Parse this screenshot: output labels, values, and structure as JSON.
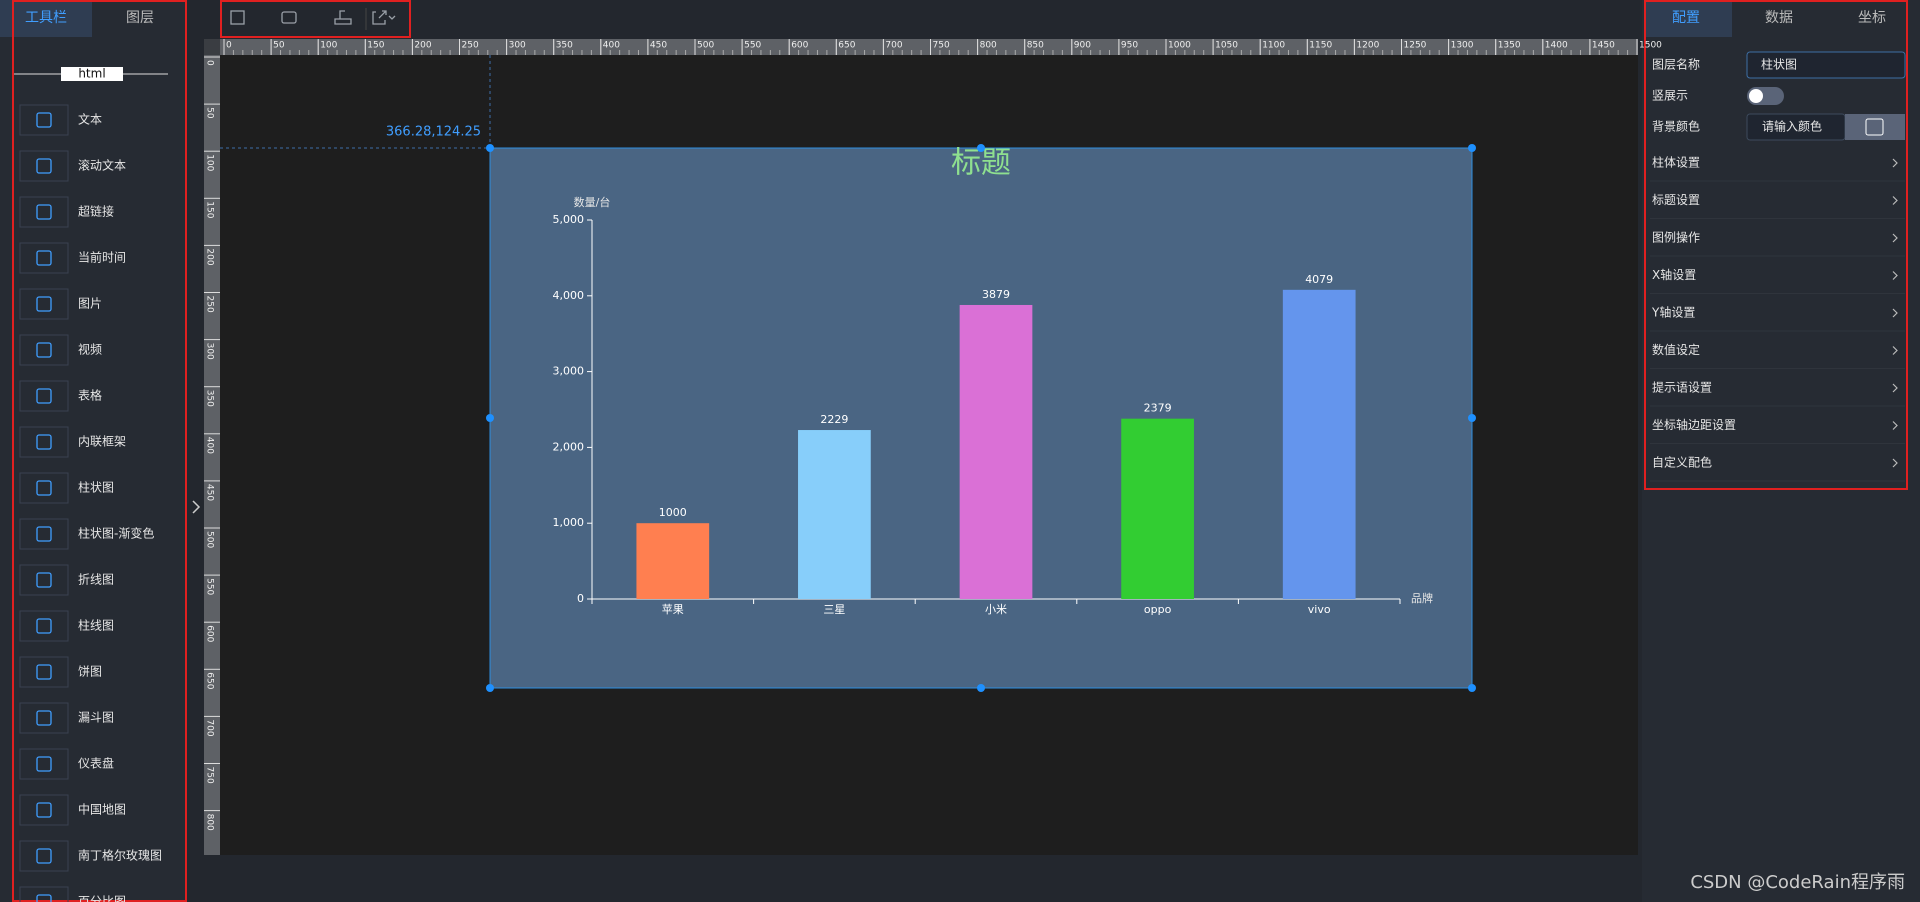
{
  "sidebar": {
    "tabs": [
      "工具栏",
      "图层"
    ],
    "section": "html",
    "tools": [
      "文本",
      "滚动文本",
      "超链接",
      "当前时间",
      "图片",
      "视频",
      "表格",
      "内联框架",
      "柱状图",
      "柱状图-渐变色",
      "折线图",
      "柱线图",
      "饼图",
      "漏斗图",
      "仪表盘",
      "中国地图",
      "南丁格尔玫瑰图",
      "百分比图"
    ]
  },
  "canvas": {
    "top_ruler": [
      0,
      50,
      100,
      150,
      200,
      250,
      300,
      350,
      400,
      450,
      500,
      550,
      600,
      650,
      700,
      750,
      800,
      850,
      900,
      950,
      1000,
      1050,
      1100,
      1150,
      1200,
      1250,
      1300,
      1350,
      1400,
      1450,
      1500
    ],
    "left_ruler": [
      0,
      50,
      100,
      150,
      200,
      250,
      300,
      350,
      400,
      450,
      500,
      550,
      600,
      650,
      700,
      750,
      800
    ],
    "position": "366.28,124.25"
  },
  "chart_data": {
    "type": "bar",
    "title": "标题",
    "y_axis_label": "数量/台",
    "x_axis_label": "品牌",
    "categories": [
      "苹果",
      "三星",
      "小米",
      "oppo",
      "vivo"
    ],
    "values": [
      1000,
      2229,
      3879,
      2379,
      4079
    ],
    "colors": [
      "#ff7f50",
      "#87cefa",
      "#da70d6",
      "#32cd32",
      "#6495ed"
    ],
    "ylim": [
      0,
      5000
    ],
    "yticks": [
      0,
      {
        "value": 1000,
        "label": "1,000"
      },
      {
        "value": 2000,
        "label": "2,000"
      },
      {
        "value": 3000,
        "label": "3,000"
      },
      {
        "value": 4000,
        "label": "4,000"
      },
      {
        "value": 5000,
        "label": "5,000"
      }
    ]
  },
  "panel": {
    "tabs": [
      "配置",
      "数据",
      "坐标"
    ],
    "layer_name_label": "图层名称",
    "layer_name": "柱状图",
    "vertical_label": "竖展示",
    "bg_color_label": "背景颜色",
    "bg_color_placeholder": "请输入颜色",
    "sections": [
      "柱体设置",
      "标题设置",
      "图例操作",
      "X轴设置",
      "Y轴设置",
      "数值设定",
      "提示语设置",
      "坐标轴边距设置",
      "自定义配色"
    ]
  },
  "watermark": "CSDN @CodeRain程序雨"
}
